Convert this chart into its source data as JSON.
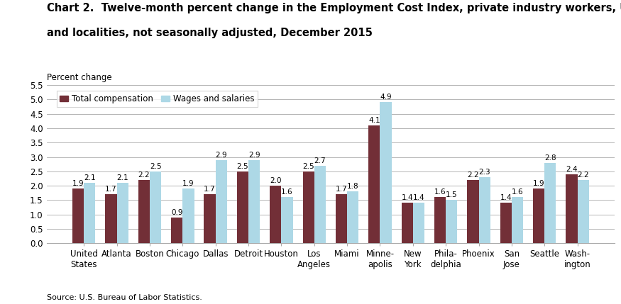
{
  "title_line1": "Chart 2.  Twelve-month percent change in the Employment Cost Index, private industry workers, United States",
  "title_line2": "and localities, not seasonally adjusted, December 2015",
  "ylabel_text": "Percent change",
  "source": "Source: U.S. Bureau of Labor Statistics.",
  "categories": [
    "United\nStates",
    "Atlanta",
    "Boston",
    "Chicago",
    "Dallas",
    "Detroit",
    "Houston",
    "Los\nAngeles",
    "Miami",
    "Minne-\napolis",
    "New\nYork",
    "Phila-\ndelphia",
    "Phoenix",
    "San\nJose",
    "Seattle",
    "Wash-\nington"
  ],
  "total_compensation": [
    1.9,
    1.7,
    2.2,
    0.9,
    1.7,
    2.5,
    2.0,
    2.5,
    1.7,
    4.1,
    1.4,
    1.6,
    2.2,
    1.4,
    1.9,
    2.4
  ],
  "wages_and_salaries": [
    2.1,
    2.1,
    2.5,
    1.9,
    2.9,
    2.9,
    1.6,
    2.7,
    1.8,
    4.9,
    1.4,
    1.5,
    2.3,
    1.6,
    2.8,
    2.2
  ],
  "color_total": "#722F37",
  "color_wages": "#ADD8E6",
  "ylim": [
    0,
    5.5
  ],
  "yticks": [
    0.0,
    0.5,
    1.0,
    1.5,
    2.0,
    2.5,
    3.0,
    3.5,
    4.0,
    4.5,
    5.0,
    5.5
  ],
  "legend_total": "Total compensation",
  "legend_wages": "Wages and salaries",
  "bar_width": 0.35,
  "title_fontsize": 10.5,
  "axis_label_fontsize": 8.5,
  "tick_fontsize": 8.5,
  "value_fontsize": 7.5,
  "legend_fontsize": 8.5,
  "source_fontsize": 8.0
}
